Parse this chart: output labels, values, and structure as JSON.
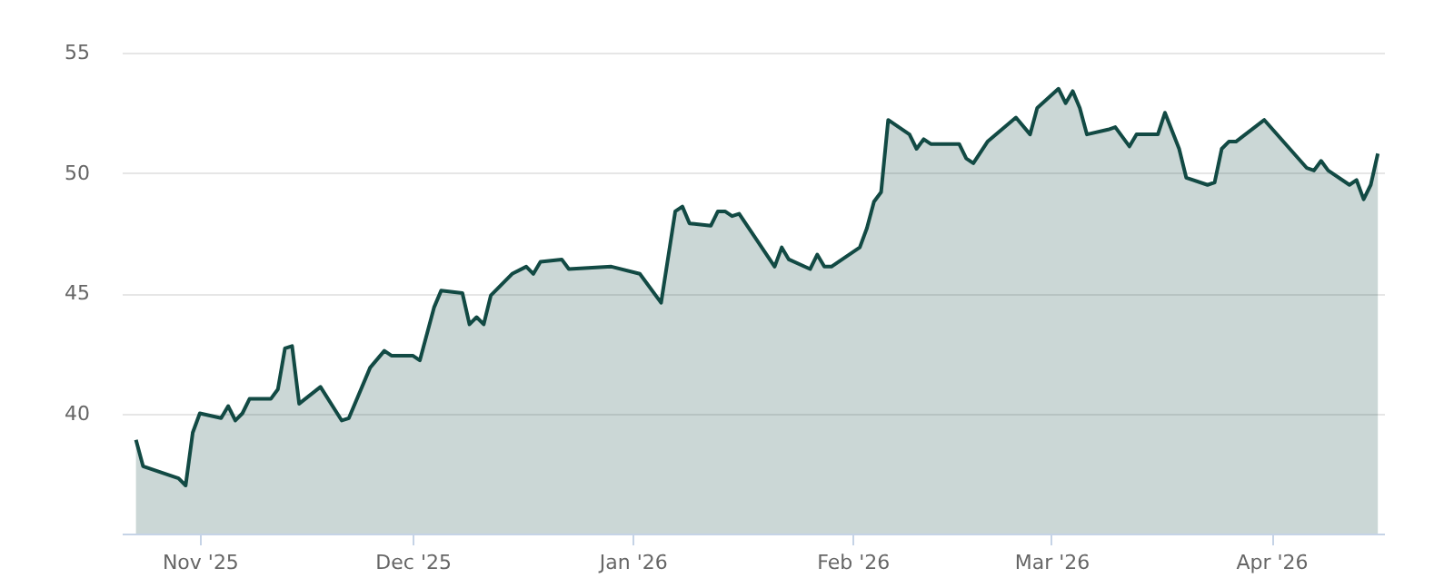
{
  "chart_data": {
    "type": "area",
    "x": [
      "2025-10-23",
      "2025-10-24",
      "2025-10-29",
      "2025-10-30",
      "2025-10-31",
      "2025-11-01",
      "2025-11-04",
      "2025-11-05",
      "2025-11-06",
      "2025-11-07",
      "2025-11-08",
      "2025-11-11",
      "2025-11-12",
      "2025-11-13",
      "2025-11-14",
      "2025-11-15",
      "2025-11-18",
      "2025-11-21",
      "2025-11-22",
      "2025-11-25",
      "2025-11-27",
      "2025-11-28",
      "2025-12-01",
      "2025-12-02",
      "2025-12-04",
      "2025-12-05",
      "2025-12-08",
      "2025-12-09",
      "2025-12-10",
      "2025-12-11",
      "2025-12-12",
      "2025-12-15",
      "2025-12-17",
      "2025-12-18",
      "2025-12-19",
      "2025-12-22",
      "2025-12-23",
      "2025-12-29",
      "2026-01-02",
      "2026-01-05",
      "2026-01-07",
      "2026-01-08",
      "2026-01-09",
      "2026-01-12",
      "2026-01-13",
      "2026-01-14",
      "2026-01-15",
      "2026-01-16",
      "2026-01-21",
      "2026-01-22",
      "2026-01-23",
      "2026-01-26",
      "2026-01-27",
      "2026-01-28",
      "2026-01-29",
      "2026-02-02",
      "2026-02-03",
      "2026-02-04",
      "2026-02-05",
      "2026-02-06",
      "2026-02-09",
      "2026-02-10",
      "2026-02-11",
      "2026-02-12",
      "2026-02-16",
      "2026-02-17",
      "2026-02-18",
      "2026-02-20",
      "2026-02-24",
      "2026-02-26",
      "2026-02-27",
      "2026-03-02",
      "2026-03-03",
      "2026-03-04",
      "2026-03-05",
      "2026-03-06",
      "2026-03-09",
      "2026-03-10",
      "2026-03-12",
      "2026-03-13",
      "2026-03-16",
      "2026-03-17",
      "2026-03-19",
      "2026-03-20",
      "2026-03-23",
      "2026-03-24",
      "2026-03-25",
      "2026-03-26",
      "2026-03-27",
      "2026-03-31",
      "2026-04-06",
      "2026-04-07",
      "2026-04-08",
      "2026-04-09",
      "2026-04-12",
      "2026-04-13",
      "2026-04-14",
      "2026-04-15",
      "2026-04-16"
    ],
    "series": [
      {
        "color": "#124a44",
        "values": [
          38.9,
          37.8,
          37.3,
          37.0,
          39.2,
          40.0,
          39.8,
          40.3,
          39.7,
          40.0,
          40.6,
          40.6,
          41.0,
          42.7,
          42.8,
          40.4,
          41.1,
          39.7,
          39.8,
          41.9,
          42.6,
          42.4,
          42.4,
          42.2,
          44.4,
          45.1,
          45.0,
          43.7,
          44.0,
          43.7,
          44.9,
          45.8,
          46.1,
          45.8,
          46.3,
          46.4,
          46.0,
          46.1,
          45.8,
          44.6,
          48.4,
          48.6,
          47.9,
          47.8,
          48.4,
          48.4,
          48.2,
          48.3,
          46.1,
          46.9,
          46.4,
          46.0,
          46.6,
          46.1,
          46.1,
          46.9,
          47.7,
          48.8,
          49.2,
          52.2,
          51.6,
          51.0,
          51.4,
          51.2,
          51.2,
          50.6,
          50.4,
          51.3,
          52.3,
          51.6,
          52.7,
          53.5,
          52.9,
          53.4,
          52.7,
          51.6,
          51.8,
          51.9,
          51.1,
          51.6,
          51.6,
          52.5,
          51.0,
          49.8,
          49.5,
          49.6,
          51.0,
          51.3,
          51.3,
          52.2,
          50.2,
          50.1,
          50.5,
          50.1,
          49.5,
          49.7,
          48.9,
          49.5,
          50.8
        ]
      }
    ],
    "xlim": [
      "2025-10-21",
      "2026-04-17"
    ],
    "xticks": [
      {
        "value": "2025-11-01",
        "label": "Nov '25"
      },
      {
        "value": "2025-12-01",
        "label": "Dec '25"
      },
      {
        "value": "2026-01-01",
        "label": "Jan '26"
      },
      {
        "value": "2026-02-01",
        "label": "Feb '26"
      },
      {
        "value": "2026-03-01",
        "label": "Mar '26"
      },
      {
        "value": "2026-04-01",
        "label": "Apr '26"
      }
    ],
    "ylim": [
      35,
      55
    ],
    "yticks": [
      40,
      45,
      50,
      55
    ],
    "grid": "y"
  }
}
